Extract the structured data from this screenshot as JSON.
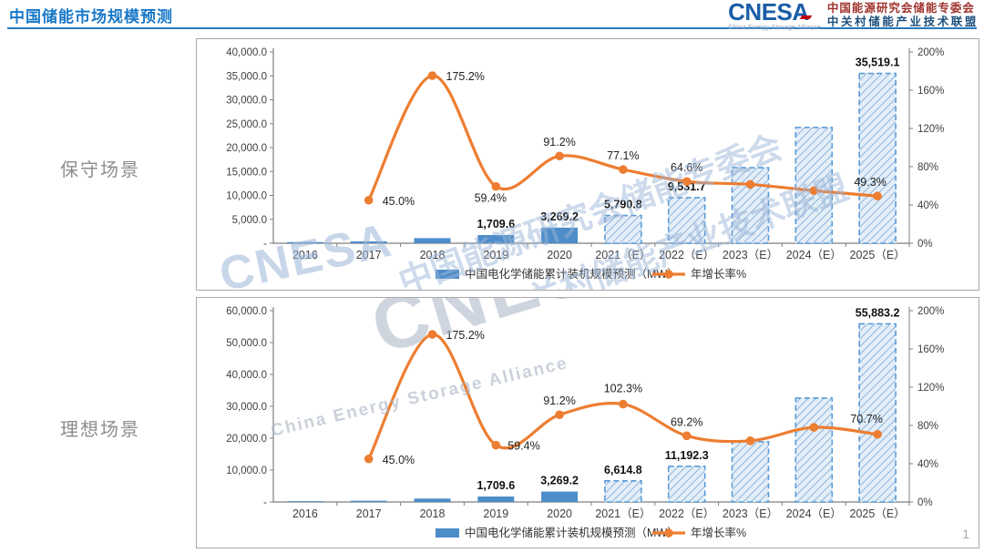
{
  "header": {
    "title": "中国储能市场规模预测"
  },
  "logo": {
    "name": "CNESA",
    "subtitle": "China Energy Storage Alliance",
    "line1": "中国能源研究会储能专委会",
    "line2": "中关村储能产业技术联盟"
  },
  "scenarios": [
    {
      "label": "保守场景"
    },
    {
      "label": "理想场景"
    }
  ],
  "watermarks": {
    "cnesa": "CNESA",
    "alliance_en": "China Energy Storage Alliance",
    "line1": "中国能源研究会储能专委会",
    "line2": "中关村储能产业技术联盟"
  },
  "page_number": "1",
  "palette": {
    "bar": "#4D8DC9",
    "forecast_fill": "#E4EEF8",
    "forecast_hatch": "#84AED9",
    "forecast_border": "#5B9BD5",
    "line": "#ED7D31",
    "axis": "#7F7F7F",
    "text": "#404040",
    "title_blue": "#1878C8",
    "underline_blue": "#2779BE",
    "logo_blue": "#1A5DA6",
    "logo_red": "#C00000",
    "alliance_red": "#A0342E",
    "alliance_blue": "#1C4F7C",
    "scenario_gray": "#8C8C8C",
    "watermark_blue": "#9CB6D8",
    "watermark_gray": "#A8B4C4"
  },
  "chart_data": [
    {
      "type": "bar",
      "scenario": "保守场景",
      "legend_position": "bottom",
      "grid": false,
      "categories": [
        "2016",
        "2017",
        "2018",
        "2019",
        "2020",
        "2021（E）",
        "2022（E）",
        "2023（E）",
        "2024（E）",
        "2025（E）"
      ],
      "left_axis": {
        "max": 40000,
        "ticks": [
          "40,000.0",
          "35,000.0",
          "30,000.0",
          "25,000.0",
          "20,000.0",
          "15,000.0",
          "10,000.0",
          "5,000.0",
          "-"
        ]
      },
      "right_axis": {
        "max_pct": 200,
        "ticks": [
          "200%",
          "160%",
          "120%",
          "80%",
          "40%",
          "0%"
        ]
      },
      "series": [
        {
          "name": "中国电化学储能累计装机规模预测（MW）",
          "type": "bar",
          "forecast_from_index": 5,
          "estimated_indices": [
            0,
            1,
            2,
            7,
            8
          ],
          "values": [
            243,
            390,
            1072.7,
            1709.6,
            3269.2,
            5790.8,
            9531.7,
            15800,
            24200,
            35519.1
          ],
          "labels": {
            "3": "1,709.6",
            "4": "3,269.2",
            "5": "5,790.8",
            "6": "9,531.7",
            "9": "35,519.1"
          }
        },
        {
          "name": "年增长率%",
          "type": "line",
          "estimated_indices": [
            7,
            8
          ],
          "values": [
            null,
            45.0,
            175.2,
            59.4,
            91.2,
            77.1,
            64.6,
            61.5,
            55.0,
            49.3
          ],
          "labels": [
            {
              "i": 1,
              "text": "45.0%",
              "dx": 15,
              "dy": 5,
              "a": "s"
            },
            {
              "i": 2,
              "text": "175.2%",
              "dx": 15,
              "dy": 5,
              "a": "s"
            },
            {
              "i": 3,
              "text": "59.4%",
              "dx": -6,
              "dy": 17
            },
            {
              "i": 4,
              "text": "91.2%",
              "dx": 0,
              "dy": -11
            },
            {
              "i": 5,
              "text": "77.1%",
              "dx": 0,
              "dy": -11
            },
            {
              "i": 6,
              "text": "64.6%",
              "dx": 0,
              "dy": -11
            },
            {
              "i": 9,
              "text": "49.3%",
              "dx": -8,
              "dy": -11
            }
          ]
        }
      ]
    },
    {
      "type": "bar",
      "scenario": "理想场景",
      "legend_position": "bottom",
      "grid": false,
      "categories": [
        "2016",
        "2017",
        "2018",
        "2019",
        "2020",
        "2021（E）",
        "2022（E）",
        "2023（E）",
        "2024（E）",
        "2025（E）"
      ],
      "left_axis": {
        "max": 60000,
        "ticks": [
          "60,000.0",
          "50,000.0",
          "40,000.0",
          "30,000.0",
          "20,000.0",
          "10,000.0",
          "-"
        ]
      },
      "right_axis": {
        "max_pct": 200,
        "ticks": [
          "200%",
          "160%",
          "120%",
          "80%",
          "40%",
          "0%"
        ]
      },
      "series": [
        {
          "name": "中国电化学储能累计装机规模预测（MW）",
          "type": "bar",
          "forecast_from_index": 5,
          "estimated_indices": [
            0,
            1,
            2,
            7,
            8
          ],
          "values": [
            243,
            390,
            1072.7,
            1709.6,
            3269.2,
            6614.8,
            11192.3,
            18900,
            32600,
            55883.2
          ],
          "labels": {
            "3": "1,709.6",
            "4": "3,269.2",
            "5": "6,614.8",
            "6": "11,192.3",
            "9": "55,883.2"
          }
        },
        {
          "name": "年增长率%",
          "type": "line",
          "estimated_indices": [
            7,
            8
          ],
          "values": [
            null,
            45.0,
            175.2,
            59.4,
            91.2,
            102.3,
            69.2,
            64.0,
            78.0,
            70.7
          ],
          "labels": [
            {
              "i": 1,
              "text": "45.0%",
              "dx": 15,
              "dy": 5,
              "a": "s"
            },
            {
              "i": 2,
              "text": "175.2%",
              "dx": 15,
              "dy": 5,
              "a": "s"
            },
            {
              "i": 3,
              "text": "59.4%",
              "dx": 13,
              "dy": 5,
              "a": "s"
            },
            {
              "i": 4,
              "text": "91.2%",
              "dx": 0,
              "dy": -11
            },
            {
              "i": 5,
              "text": "102.3%",
              "dx": 0,
              "dy": -13
            },
            {
              "i": 6,
              "text": "69.2%",
              "dx": 0,
              "dy": -11
            },
            {
              "i": 9,
              "text": "70.7%",
              "dx": -12,
              "dy": -13
            }
          ]
        }
      ]
    }
  ]
}
